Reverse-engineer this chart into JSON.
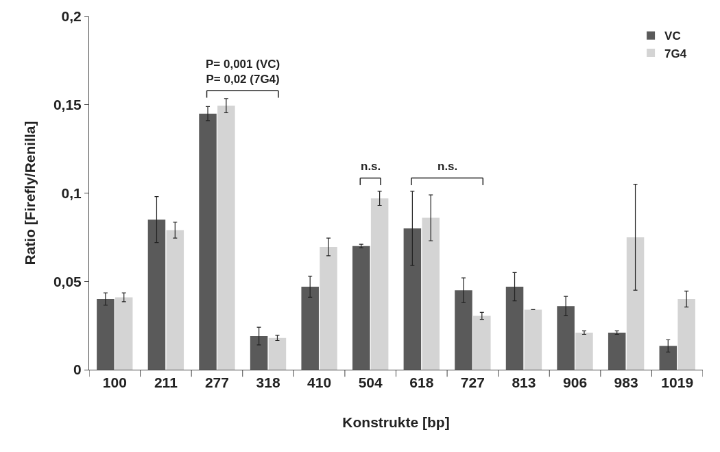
{
  "chart_data": {
    "type": "bar",
    "xlabel": "Konstrukte [bp]",
    "ylabel": "Ratio [Firefly/Renilla]",
    "categories": [
      "100",
      "211",
      "277",
      "318",
      "410",
      "504",
      "618",
      "727",
      "813",
      "906",
      "983",
      "1019"
    ],
    "series": [
      {
        "name": "VC",
        "color": "#5a5a5a",
        "values": [
          0.04,
          0.085,
          0.145,
          0.019,
          0.047,
          0.07,
          0.08,
          0.045,
          0.047,
          0.036,
          0.021,
          0.0135
        ],
        "errors": [
          0.0035,
          0.013,
          0.004,
          0.005,
          0.006,
          0.001,
          0.021,
          0.007,
          0.008,
          0.0055,
          0.001,
          0.0035
        ]
      },
      {
        "name": "7G4",
        "color": "#d4d4d4",
        "values": [
          0.041,
          0.079,
          0.1495,
          0.018,
          0.0695,
          0.097,
          0.086,
          0.0305,
          0.034,
          0.021,
          0.075,
          0.04
        ],
        "errors": [
          0.0025,
          0.0045,
          0.004,
          0.0015,
          0.005,
          0.004,
          0.013,
          0.002,
          null,
          0.001,
          0.03,
          0.0045
        ]
      }
    ],
    "ylim": [
      0,
      0.2
    ],
    "yticks": [
      0,
      {
        "value": 0.05,
        "label": "0,05"
      },
      {
        "value": 0.1,
        "label": "0,1"
      },
      {
        "value": 0.15,
        "label": "0,15"
      },
      {
        "value": 0.2,
        "label": "0,2"
      }
    ],
    "grid": false,
    "legend": "top right",
    "annotations": [
      "P= 0,001 (VC)\nP= 0,02 (7G4)",
      "n.s.",
      "n.s."
    ]
  }
}
